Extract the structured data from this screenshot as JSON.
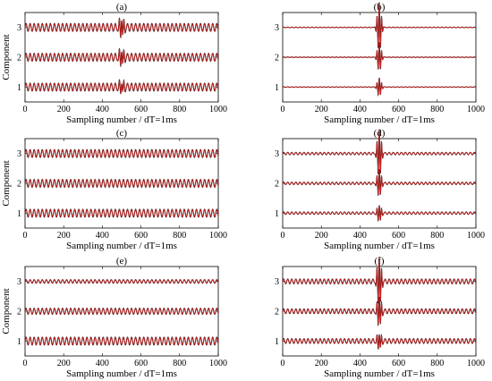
{
  "chart_data": [
    {
      "panel_label": "(a)",
      "type": "line",
      "xlabel": "Sampling number / dT=1ms",
      "ylabel": "Component",
      "xlim": [
        0,
        1000
      ],
      "ylim": [
        0.5,
        3.5
      ],
      "xticks": [
        0,
        200,
        400,
        600,
        800,
        1000
      ],
      "yticks": [
        1,
        2,
        3
      ],
      "series": [
        {
          "component": 1,
          "baseline": 1,
          "background_amplitude": 0.13,
          "background_period_samples": 21,
          "spike_center": 500,
          "spike_amplitude": 0.22,
          "spike_width_samples": 10
        },
        {
          "component": 2,
          "baseline": 2,
          "background_amplitude": 0.13,
          "background_period_samples": 21,
          "spike_center": 500,
          "spike_amplitude": 0.3,
          "spike_width_samples": 10
        },
        {
          "component": 3,
          "baseline": 3,
          "background_amplitude": 0.13,
          "background_period_samples": 21,
          "spike_center": 500,
          "spike_amplitude": 0.35,
          "spike_width_samples": 10
        }
      ],
      "colors": {
        "trace": "#000000",
        "overlay": "#d42020"
      }
    },
    {
      "panel_label": "(b)",
      "type": "line",
      "xlabel": "Sampling number / dT=1ms",
      "ylabel": "",
      "xlim": [
        0,
        1000
      ],
      "ylim": [
        0.5,
        3.5
      ],
      "xticks": [
        0,
        200,
        400,
        600,
        800,
        1000
      ],
      "yticks": [
        1,
        2,
        3
      ],
      "series": [
        {
          "component": 1,
          "baseline": 1,
          "background_amplitude": 0.01,
          "background_period_samples": 21,
          "spike_center": 500,
          "spike_amplitude": 0.32,
          "spike_width_samples": 9
        },
        {
          "component": 2,
          "baseline": 2,
          "background_amplitude": 0.01,
          "background_period_samples": 21,
          "spike_center": 500,
          "spike_amplitude": 0.5,
          "spike_width_samples": 9
        },
        {
          "component": 3,
          "baseline": 3,
          "background_amplitude": 0.01,
          "background_period_samples": 21,
          "spike_center": 500,
          "spike_amplitude": 0.85,
          "spike_width_samples": 9
        }
      ],
      "colors": {
        "trace": "#000000",
        "overlay": "#d42020"
      }
    },
    {
      "panel_label": "(c)",
      "type": "line",
      "xlabel": "Sampling number / dT=1ms",
      "ylabel": "Component",
      "xlim": [
        0,
        1000
      ],
      "ylim": [
        0.5,
        3.5
      ],
      "xticks": [
        0,
        200,
        400,
        600,
        800,
        1000
      ],
      "yticks": [
        1,
        2,
        3
      ],
      "series": [
        {
          "component": 1,
          "baseline": 1,
          "background_amplitude": 0.13,
          "background_period_samples": 21,
          "spike_center": 500,
          "spike_amplitude": 0.0,
          "spike_width_samples": 10
        },
        {
          "component": 2,
          "baseline": 2,
          "background_amplitude": 0.13,
          "background_period_samples": 21,
          "spike_center": 500,
          "spike_amplitude": 0.0,
          "spike_width_samples": 10
        },
        {
          "component": 3,
          "baseline": 3,
          "background_amplitude": 0.13,
          "background_period_samples": 21,
          "spike_center": 500,
          "spike_amplitude": 0.0,
          "spike_width_samples": 10
        }
      ],
      "colors": {
        "trace": "#000000",
        "overlay": "#d42020"
      }
    },
    {
      "panel_label": "(d)",
      "type": "line",
      "xlabel": "Sampling number / dT=1ms",
      "ylabel": "",
      "xlim": [
        0,
        1000
      ],
      "ylim": [
        0.5,
        3.5
      ],
      "xticks": [
        0,
        200,
        400,
        600,
        800,
        1000
      ],
      "yticks": [
        1,
        2,
        3
      ],
      "series": [
        {
          "component": 1,
          "baseline": 1,
          "background_amplitude": 0.04,
          "background_period_samples": 21,
          "spike_center": 500,
          "spike_amplitude": 0.3,
          "spike_width_samples": 9
        },
        {
          "component": 2,
          "baseline": 2,
          "background_amplitude": 0.04,
          "background_period_samples": 21,
          "spike_center": 500,
          "spike_amplitude": 0.5,
          "spike_width_samples": 9
        },
        {
          "component": 3,
          "baseline": 3,
          "background_amplitude": 0.04,
          "background_period_samples": 21,
          "spike_center": 500,
          "spike_amplitude": 0.85,
          "spike_width_samples": 9
        }
      ],
      "colors": {
        "trace": "#000000",
        "overlay": "#d42020"
      }
    },
    {
      "panel_label": "(e)",
      "type": "line",
      "xlabel": "Sampling number / dT=1ms",
      "ylabel": "Component",
      "xlim": [
        0,
        1000
      ],
      "ylim": [
        0.5,
        3.5
      ],
      "xticks": [
        0,
        200,
        400,
        600,
        800,
        1000
      ],
      "yticks": [
        1,
        2,
        3
      ],
      "series": [
        {
          "component": 1,
          "baseline": 1,
          "background_amplitude": 0.13,
          "background_period_samples": 21,
          "spike_center": 500,
          "spike_amplitude": 0.0,
          "spike_width_samples": 10
        },
        {
          "component": 2,
          "baseline": 2,
          "background_amplitude": 0.1,
          "background_period_samples": 21,
          "spike_center": 500,
          "spike_amplitude": 0.0,
          "spike_width_samples": 10
        },
        {
          "component": 3,
          "baseline": 3,
          "background_amplitude": 0.06,
          "background_period_samples": 21,
          "spike_center": 500,
          "spike_amplitude": 0.0,
          "spike_width_samples": 10
        }
      ],
      "colors": {
        "trace": "#000000",
        "overlay": "#d42020"
      }
    },
    {
      "panel_label": "(f)",
      "type": "line",
      "xlabel": "Sampling number / dT=1ms",
      "ylabel": "",
      "xlim": [
        0,
        1000
      ],
      "ylim": [
        0.5,
        3.5
      ],
      "xticks": [
        0,
        200,
        400,
        600,
        800,
        1000
      ],
      "yticks": [
        1,
        2,
        3
      ],
      "series": [
        {
          "component": 1,
          "baseline": 1,
          "background_amplitude": 0.08,
          "background_period_samples": 21,
          "spike_center": 500,
          "spike_amplitude": 0.3,
          "spike_width_samples": 9
        },
        {
          "component": 2,
          "baseline": 2,
          "background_amplitude": 0.08,
          "background_period_samples": 21,
          "spike_center": 500,
          "spike_amplitude": 0.55,
          "spike_width_samples": 9
        },
        {
          "component": 3,
          "baseline": 3,
          "background_amplitude": 0.08,
          "background_period_samples": 21,
          "spike_center": 500,
          "spike_amplitude": 0.9,
          "spike_width_samples": 9
        }
      ],
      "colors": {
        "trace": "#000000",
        "overlay": "#d42020"
      }
    }
  ]
}
